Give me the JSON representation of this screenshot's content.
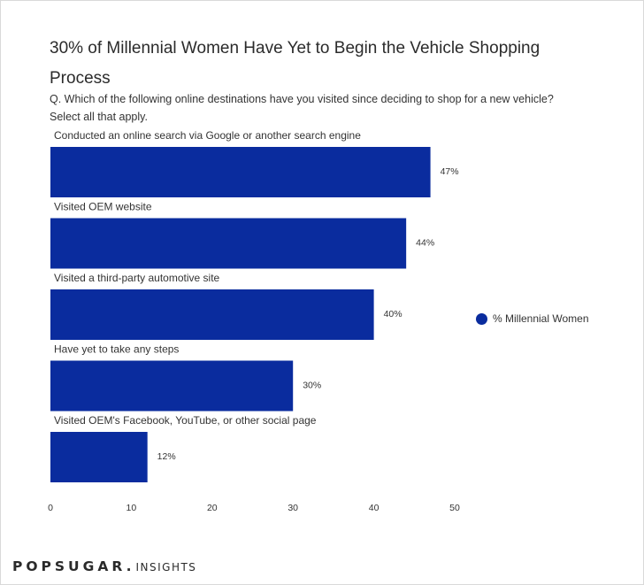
{
  "chart_data": {
    "type": "bar",
    "orientation": "horizontal",
    "title": "30% of Millennial Women Have Yet to Begin the Vehicle Shopping Process",
    "subtitle": "Q. Which of the following online destinations have you visited since deciding to shop for a new vehicle? Select all that apply.",
    "categories": [
      "Conducted an online search via Google or another search engine",
      "Visited OEM website",
      "Visited a third-party automotive site",
      "Have yet to take any steps",
      "Visited OEM's Facebook, YouTube, or other social page"
    ],
    "series": [
      {
        "name": "% Millennial Women",
        "values": [
          47,
          44,
          40,
          30,
          12
        ],
        "value_labels": [
          "47%",
          "44%",
          "40%",
          "30%",
          "12%"
        ],
        "color": "#0a2c9e"
      }
    ],
    "xlim": [
      0,
      50
    ],
    "xticks": [
      0,
      10,
      20,
      30,
      40,
      50
    ],
    "grid": false,
    "legend_position": "right"
  },
  "branding": {
    "logo_main": "POPSUGAR.",
    "logo_sub": "INSIGHTS"
  }
}
